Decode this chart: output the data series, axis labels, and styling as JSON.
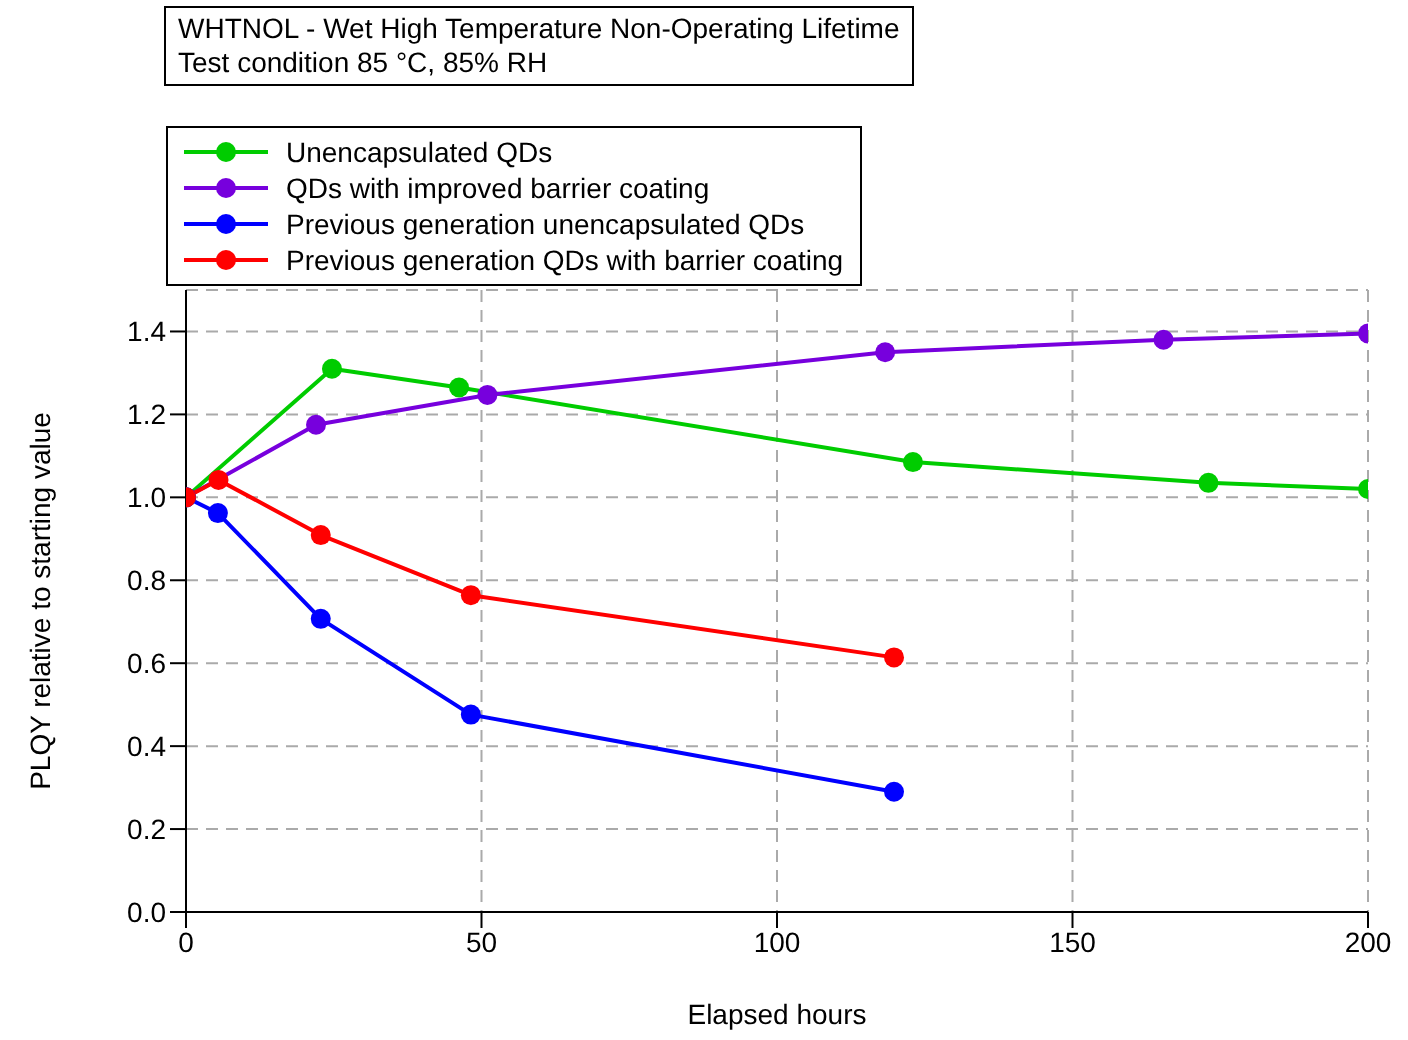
{
  "chart_data": {
    "type": "line",
    "title": "WHTNOL - Wet High Temperature Non-Operating Lifetime",
    "subtitle": "Test condition 85 °C, 85% RH",
    "xlabel": "Elapsed hours",
    "ylabel": "PLQY relative to starting value",
    "xlim": [
      0,
      200
    ],
    "xticks": [
      0,
      50,
      100,
      150,
      200
    ],
    "ylim": [
      0,
      1.5
    ],
    "yticks": [
      {
        "value": 0,
        "label": "0.0"
      },
      0.2,
      0.4,
      0.6,
      0.8,
      {
        "value": 1,
        "label": "1.0"
      },
      1.2,
      1.4
    ],
    "grid": true,
    "legend": "top left",
    "marker": "circle",
    "line_style": "solid",
    "series": [
      {
        "name": "Unencapsulated QDs",
        "color": "#00cc00",
        "x": [
          0,
          24.7,
          46.2,
          123,
          173,
          200
        ],
        "values": [
          1.0,
          1.31,
          1.265,
          1.085,
          1.035,
          1.02
        ]
      },
      {
        "name": "QDs with improved barrier coating",
        "color": "#7700dd",
        "x": [
          0,
          22,
          51,
          118.3,
          165.4,
          200
        ],
        "values": [
          1.0,
          1.175,
          1.247,
          1.35,
          1.38,
          1.395
        ]
      },
      {
        "name": "Previous generation unencapsulated QDs",
        "color": "#0000ff",
        "x": [
          0,
          5.4,
          22.8,
          48.2,
          119.8
        ],
        "values": [
          1.0,
          0.962,
          0.707,
          0.476,
          0.29
        ]
      },
      {
        "name": "Previous generation QDs with barrier coating",
        "color": "#ff0000",
        "x": [
          0,
          5.5,
          22.8,
          48.2,
          119.8
        ],
        "values": [
          1.0,
          1.042,
          0.909,
          0.764,
          0.614
        ]
      }
    ]
  }
}
